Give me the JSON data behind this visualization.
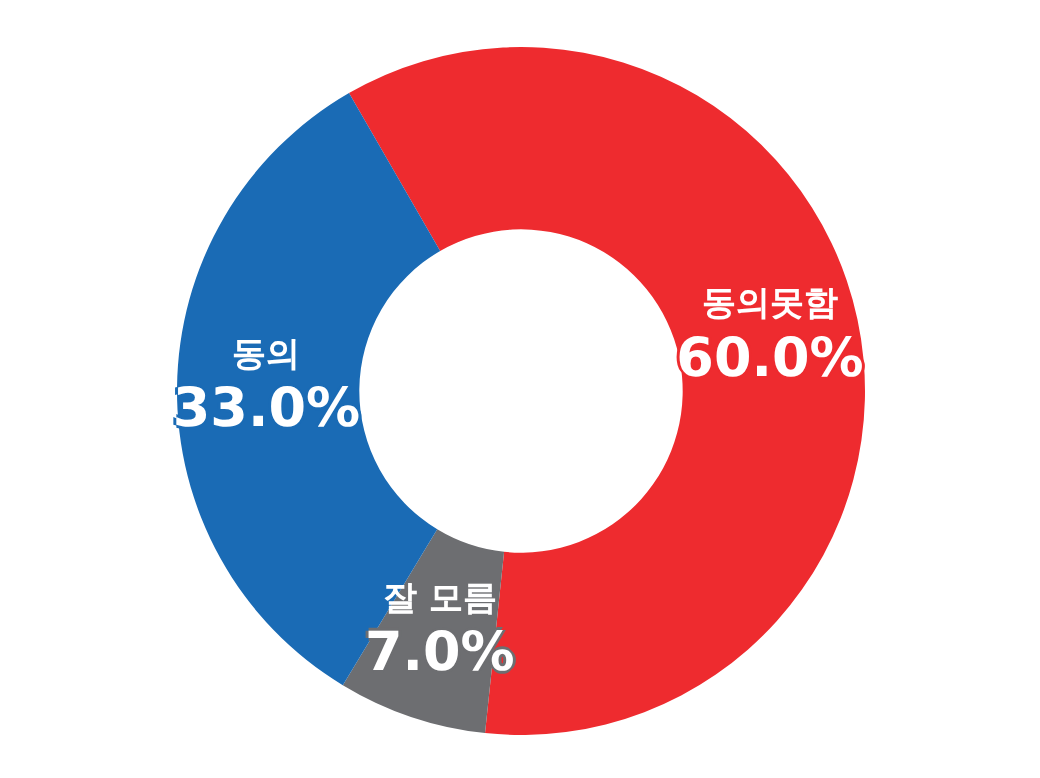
{
  "chart_data": {
    "type": "donut",
    "categories": [
      "동의못함",
      "잘 모름",
      "동의"
    ],
    "values": [
      60.0,
      7.0,
      33.0
    ],
    "colors": [
      "#ee2b2f",
      "#6d6e71",
      "#1a6bb5"
    ],
    "value_labels": [
      "60.0%",
      "7.0%",
      "33.0%"
    ]
  }
}
